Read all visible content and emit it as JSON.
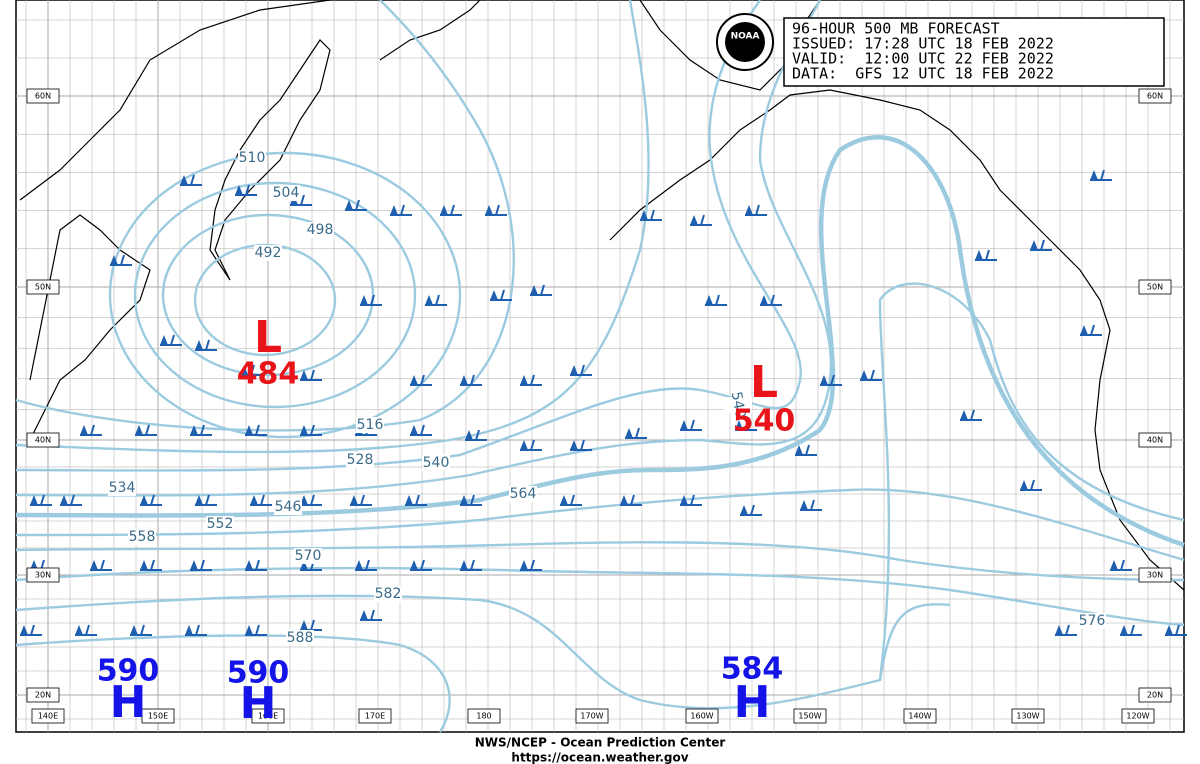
{
  "header": {
    "lines": [
      "96-HOUR 500 MB FORECAST",
      "ISSUED: 17:28 UTC 18 FEB 2022",
      "VALID:  12:00 UTC 22 FEB 2022",
      "DATA:  GFS 12 UTC 18 FEB 2022"
    ]
  },
  "logo": "NOAA",
  "lat_labels": [
    "60N",
    "50N",
    "40N",
    "30N",
    "20N"
  ],
  "lon_labels": [
    "140E",
    "150E",
    "160E",
    "170E",
    "180",
    "170W",
    "160W",
    "150W",
    "140W",
    "130W",
    "120W"
  ],
  "contour_labels": [
    "510",
    "504",
    "498",
    "492",
    "516",
    "528",
    "540",
    "534",
    "546",
    "552",
    "558",
    "564",
    "570",
    "582",
    "588",
    "576",
    "540"
  ],
  "centers": [
    {
      "letter": "L",
      "value": "484"
    },
    {
      "letter": "L",
      "value": "540"
    },
    {
      "letter": "H",
      "value": "590"
    },
    {
      "letter": "H",
      "value": "590"
    },
    {
      "letter": "H",
      "value": "584"
    }
  ],
  "footer": [
    "NWS/NCEP - Ocean Prediction Center",
    "https://ocean.weather.gov"
  ]
}
